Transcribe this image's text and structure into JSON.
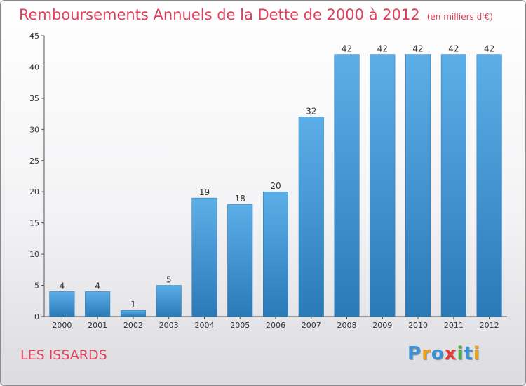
{
  "header": {
    "title": "Remboursements Annuels de la Dette de 2000 à 2012",
    "unit": "(en milliers d'€)"
  },
  "footer": {
    "commune": "LES ISSARDS",
    "logo_letters": [
      "P",
      "r",
      "o",
      "x",
      "i",
      "t",
      "i"
    ],
    "logo_colors": [
      "#3a8fd6",
      "#e8a01c",
      "#3a8fd6",
      "#e03a3a",
      "#49a844",
      "#3a8fd6",
      "#e8a01c"
    ]
  },
  "chart_data": {
    "type": "bar",
    "title": "Remboursements Annuels de la Dette de 2000 à 2012",
    "xlabel": "",
    "ylabel": "",
    "categories": [
      "2000",
      "2001",
      "2002",
      "2003",
      "2004",
      "2005",
      "2006",
      "2007",
      "2008",
      "2009",
      "2010",
      "2011",
      "2012"
    ],
    "values": [
      4,
      4,
      1,
      5,
      19,
      18,
      20,
      32,
      42,
      42,
      42,
      42,
      42
    ],
    "ylim": [
      0,
      45
    ],
    "yticks": [
      0,
      5,
      10,
      15,
      20,
      25,
      30,
      35,
      40,
      45
    ],
    "grid": false,
    "legend": "none",
    "colors": {
      "bar_top": "#5caee8",
      "bar_bottom": "#2a7ab8",
      "axis": "#555555"
    }
  }
}
